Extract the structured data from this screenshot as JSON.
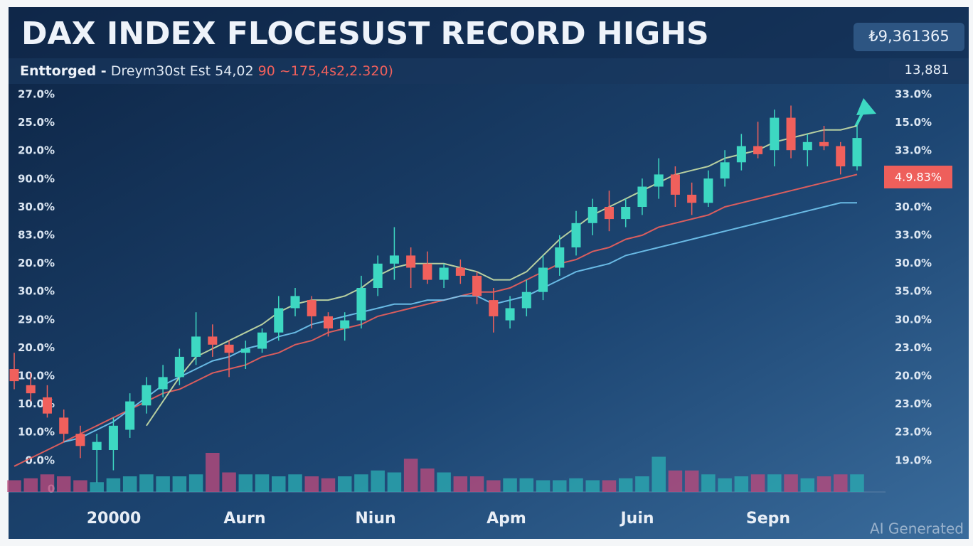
{
  "chart_data": {
    "type": "candlestick",
    "title": "DAX INDEX FLOCESUST RECORD HIGHS",
    "price_box": "₺9,361365",
    "price_box_2": "13,881",
    "subtitle": [
      "Enttorged -",
      "Dreym30st Est 54,02",
      "90 ~175,4s2,2.320)"
    ],
    "left_axis_labels": [
      "27.0%",
      "25.0%",
      "20.0%",
      "90.0%",
      "30.0%",
      "83.0%",
      "20.0%",
      "30.0%",
      "29.0%",
      "20.0%",
      "10.0%",
      "10.0%",
      "10.0%",
      "0.0%"
    ],
    "volume_axis_label": "0",
    "right_axis_labels": [
      "33.0%",
      "15.0%",
      "33.0%",
      "",
      "30.0%",
      "33.0%",
      "30.0%",
      "35.0%",
      "30.0%",
      "23.0%",
      "20.0%",
      "23.0%",
      "23.0%",
      "19.0%"
    ],
    "price_marker": "4.9.83%",
    "x_labels": [
      "20000",
      "Aurn",
      "Niun",
      "Apm",
      "Juin",
      "Sepn"
    ],
    "watermark": "AI Generated",
    "ylim": [
      0,
      100
    ],
    "up_color": "#3dd8c2",
    "down_color": "#f0605c",
    "candles": [
      [
        30,
        34,
        25,
        27
      ],
      [
        26,
        29,
        22,
        24
      ],
      [
        23,
        26,
        18,
        19
      ],
      [
        18,
        20,
        12,
        14
      ],
      [
        14,
        16,
        8,
        11
      ],
      [
        10,
        14,
        2,
        12
      ],
      [
        10,
        18,
        5,
        16
      ],
      [
        15,
        24,
        13,
        22
      ],
      [
        21,
        28,
        19,
        26
      ],
      [
        25,
        31,
        23,
        28
      ],
      [
        28,
        35,
        26,
        33
      ],
      [
        33,
        44,
        31,
        38
      ],
      [
        38,
        41,
        33,
        36
      ],
      [
        36,
        37,
        28,
        34
      ],
      [
        34,
        37,
        30,
        35
      ],
      [
        35,
        40,
        34,
        39
      ],
      [
        39,
        48,
        37,
        45
      ],
      [
        45,
        50,
        43,
        48
      ],
      [
        47,
        48,
        40,
        43
      ],
      [
        43,
        44,
        38,
        40
      ],
      [
        40,
        44,
        37,
        42
      ],
      [
        42,
        53,
        40,
        50
      ],
      [
        50,
        58,
        48,
        56
      ],
      [
        56,
        65,
        52,
        58
      ],
      [
        58,
        60,
        50,
        55
      ],
      [
        56,
        59,
        51,
        52
      ],
      [
        52,
        56,
        50,
        55
      ],
      [
        55,
        57,
        51,
        53
      ],
      [
        53,
        54,
        46,
        48
      ],
      [
        47,
        50,
        39,
        43
      ],
      [
        42,
        48,
        40,
        45
      ],
      [
        45,
        52,
        43,
        49
      ],
      [
        49,
        58,
        47,
        55
      ],
      [
        55,
        63,
        53,
        60
      ],
      [
        60,
        69,
        58,
        66
      ],
      [
        66,
        72,
        63,
        70
      ],
      [
        70,
        74,
        64,
        67
      ],
      [
        67,
        72,
        65,
        70
      ],
      [
        70,
        77,
        68,
        75
      ],
      [
        75,
        82,
        72,
        78
      ],
      [
        78,
        80,
        70,
        73
      ],
      [
        73,
        76,
        68,
        71
      ],
      [
        71,
        79,
        70,
        77
      ],
      [
        77,
        84,
        75,
        81
      ],
      [
        81,
        88,
        79,
        85
      ],
      [
        85,
        91,
        82,
        83
      ],
      [
        84,
        94,
        80,
        92
      ],
      [
        92,
        95,
        82,
        84
      ],
      [
        84,
        88,
        80,
        86
      ],
      [
        86,
        90,
        84,
        85
      ],
      [
        85,
        86,
        78,
        80
      ],
      [
        80,
        90,
        79,
        87
      ]
    ],
    "series": [
      {
        "color": "#f0605c",
        "values": [
          6,
          8,
          10,
          12,
          14,
          16,
          18,
          20,
          22,
          24,
          25,
          27,
          29,
          30,
          31,
          33,
          34,
          36,
          37,
          39,
          40,
          41,
          43,
          44,
          45,
          46,
          47,
          48,
          49,
          49,
          50,
          52,
          54,
          56,
          57,
          59,
          60,
          62,
          63,
          65,
          66,
          67,
          68,
          70,
          71,
          72,
          73,
          74,
          75,
          76,
          77,
          78
        ]
      },
      {
        "color": "#72c8f2",
        "values": [
          null,
          null,
          null,
          12,
          13,
          15,
          17,
          20,
          23,
          26,
          28,
          30,
          32,
          33,
          35,
          36,
          38,
          39,
          41,
          42,
          43,
          44,
          45,
          46,
          46,
          47,
          47,
          48,
          48,
          46,
          47,
          48,
          50,
          52,
          54,
          55,
          56,
          58,
          59,
          60,
          61,
          62,
          63,
          64,
          65,
          66,
          67,
          68,
          69,
          70,
          71,
          71
        ]
      },
      {
        "color": "#c9dfa6",
        "values": [
          null,
          null,
          null,
          null,
          null,
          null,
          null,
          null,
          16,
          22,
          28,
          33,
          35,
          37,
          39,
          41,
          44,
          46,
          47,
          47,
          48,
          50,
          53,
          55,
          56,
          56,
          56,
          55,
          54,
          52,
          52,
          54,
          58,
          62,
          65,
          68,
          70,
          72,
          74,
          76,
          78,
          79,
          80,
          82,
          83,
          84,
          86,
          87,
          88,
          89,
          89,
          90
        ]
      }
    ],
    "volume_lim": [
      0,
      100
    ],
    "volume": [
      30,
      35,
      45,
      40,
      30,
      25,
      35,
      40,
      45,
      40,
      40,
      45,
      100,
      50,
      45,
      45,
      40,
      45,
      40,
      35,
      40,
      45,
      55,
      50,
      85,
      60,
      50,
      40,
      40,
      30,
      35,
      35,
      30,
      30,
      35,
      30,
      30,
      35,
      40,
      90,
      55,
      55,
      45,
      35,
      40,
      45,
      45,
      45,
      35,
      40,
      45,
      45
    ]
  }
}
